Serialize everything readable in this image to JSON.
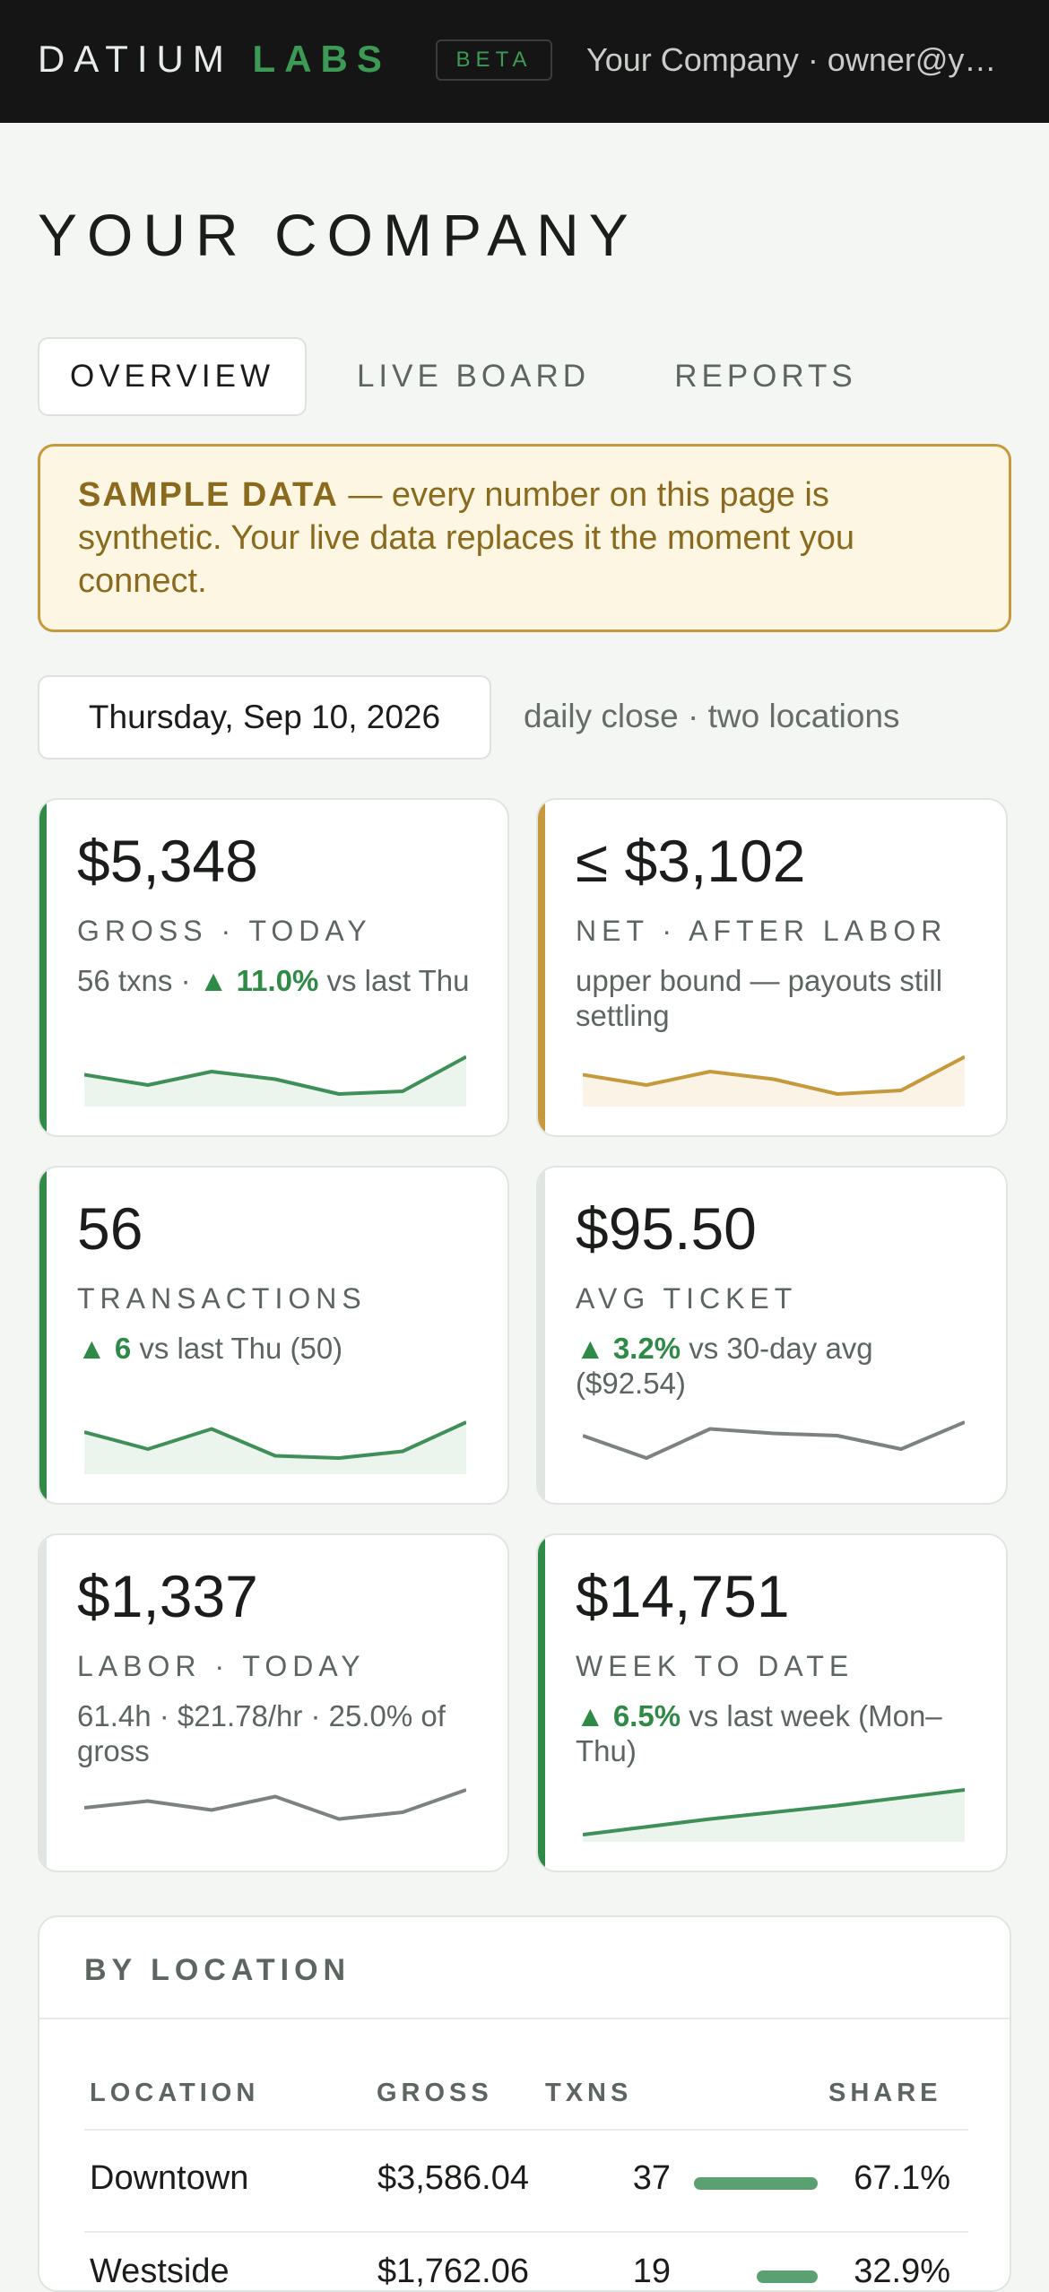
{
  "header": {
    "brand_first": "DATIUM",
    "brand_second": "LABS",
    "badge": "BETA",
    "account": "Your Company · owner@y…"
  },
  "page_title": "YOUR COMPANY",
  "tabs": [
    {
      "label": "OVERVIEW",
      "active": true
    },
    {
      "label": "LIVE BOARD",
      "active": false
    },
    {
      "label": "REPORTS",
      "active": false
    }
  ],
  "notice": {
    "strong": "SAMPLE DATA",
    "text": " — every number on this page is synthetic. Your live data replaces it the moment you connect."
  },
  "date": {
    "value": "Thursday, Sep 10, 2026",
    "note": "daily close · two locations"
  },
  "colors": {
    "green": "#2f8a47",
    "gold": "#c69a3c",
    "neutral": "#e1e5e1"
  },
  "cards": [
    {
      "value": "$5,348",
      "label": "GROSS · TODAY",
      "sub_pre": "56 txns · ",
      "sub_up": "▲ 11.0%",
      "sub_post": " vs last Thu",
      "accent": "green",
      "spark": [
        0.55,
        0.32,
        0.62,
        0.45,
        0.12,
        0.18,
        0.95
      ],
      "spark_color": "#3f8f58",
      "fill": "#ecf4ee"
    },
    {
      "value": "≤ $3,102",
      "label": "NET · AFTER LABOR",
      "sub_pre": "upper bound — payouts still settling",
      "sub_up": "",
      "sub_post": "",
      "accent": "gold",
      "spark": [
        0.55,
        0.32,
        0.62,
        0.45,
        0.12,
        0.2,
        0.95
      ],
      "spark_color": "#c69a3c",
      "fill": "#faf3e6"
    },
    {
      "value": "56",
      "label": "TRANSACTIONS",
      "sub_pre": "",
      "sub_up": "▲ 6",
      "sub_post": " vs last Thu (50)",
      "accent": "green",
      "spark": [
        0.78,
        0.4,
        0.85,
        0.25,
        0.2,
        0.35,
        1.0
      ],
      "spark_color": "#3f8f58",
      "fill": "#ecf4ee"
    },
    {
      "value": "$95.50",
      "label": "AVG TICKET",
      "sub_pre": "",
      "sub_up": "▲ 3.2%",
      "sub_post": " vs 30-day avg ($92.54)",
      "accent": "neutral",
      "spark": [
        0.7,
        0.2,
        0.85,
        0.75,
        0.7,
        0.4,
        1.0
      ],
      "spark_color": "#7c827e",
      "fill": ""
    },
    {
      "value": "$1,337",
      "label": "LABOR · TODAY",
      "sub_pre": "61.4h · $21.78/hr · 25.0% of gross",
      "sub_up": "",
      "sub_post": "",
      "accent": "neutral",
      "spark": [
        0.6,
        0.75,
        0.55,
        0.85,
        0.35,
        0.5,
        1.0
      ],
      "spark_color": "#7c827e",
      "fill": ""
    },
    {
      "value": "$14,751",
      "label": "WEEK TO DATE",
      "sub_pre": "",
      "sub_up": "▲ 6.5%",
      "sub_post": " vs last week (Mon–Thu)",
      "accent": "green",
      "spark": [
        0.0,
        0.35,
        0.65,
        1.0
      ],
      "spark_color": "#3f8f58",
      "fill": "#ecf4ee"
    }
  ],
  "by_location": {
    "title": "BY LOCATION",
    "columns": [
      "LOCATION",
      "GROSS",
      "TXNS",
      "SHARE"
    ],
    "rows": [
      {
        "location": "Downtown",
        "gross": "$3,586.04",
        "txns": "37",
        "share": "67.1%",
        "share_value": 67.1
      },
      {
        "location": "Westside",
        "gross": "$1,762.06",
        "txns": "19",
        "share": "32.9%",
        "share_value": 32.9
      }
    ]
  }
}
